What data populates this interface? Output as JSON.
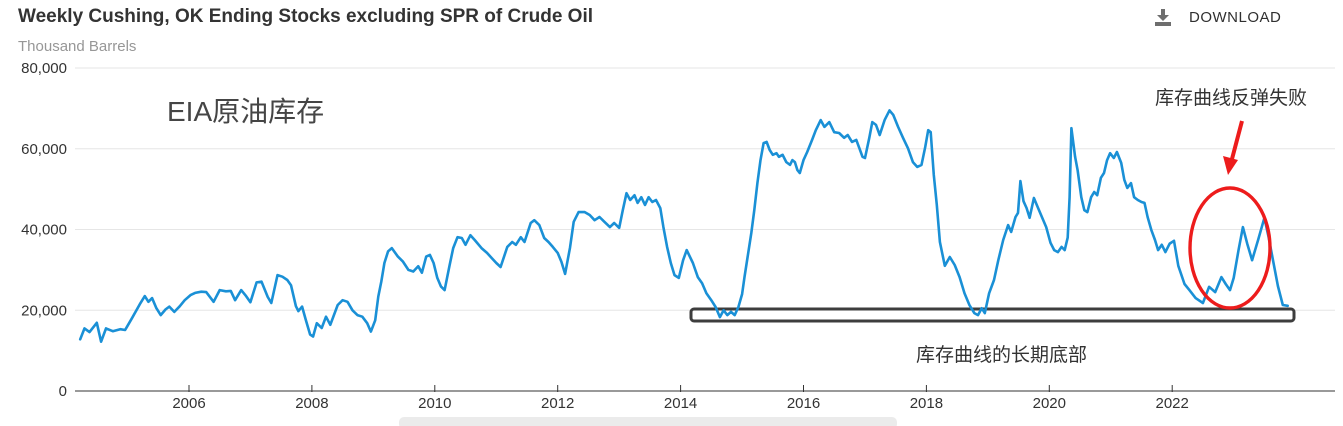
{
  "header": {
    "title": "Weekly Cushing, OK Ending Stocks excluding SPR of Crude Oil",
    "subtitle": "Thousand Barrels",
    "download_label": "DOWNLOAD"
  },
  "annotations": {
    "big_label": "EIA原油库存",
    "rebound_fail": "库存曲线反弹失败",
    "long_term_bottom": "库存曲线的长期底部"
  },
  "colors": {
    "line": "#1a90d6",
    "annotation_red": "#ed1c1c",
    "box_stroke": "#3d3d3d",
    "grid": "#e6e6e6",
    "axis": "#333333",
    "tick_label": "#333333",
    "subtitle_gray": "#979797",
    "icon_gray": "#6e6e6e"
  },
  "chart_data": {
    "type": "line",
    "title": "Weekly Cushing, OK Ending Stocks excluding SPR of Crude Oil",
    "xlabel": "",
    "ylabel": "Thousand Barrels",
    "ylim": [
      0,
      80000
    ],
    "yticks": [
      0,
      20000,
      40000,
      60000,
      80000
    ],
    "ytick_labels": [
      "0",
      "20,000",
      "40,000",
      "60,000",
      "80,000"
    ],
    "xticks": [
      2006,
      2008,
      2010,
      2012,
      2014,
      2016,
      2018,
      2020,
      2022
    ],
    "xtick_labels": [
      "2006",
      "2008",
      "2010",
      "2012",
      "2014",
      "2016",
      "2018",
      "2020",
      "2022"
    ],
    "x_range": [
      2004.1,
      2023.95
    ],
    "grid": true,
    "legend": "none",
    "series": [
      {
        "name": "Weekly Cushing, OK Ending Stocks excluding SPR of Crude Oil",
        "units": "Thousand Barrels",
        "points": [
          [
            2004.23,
            12800
          ],
          [
            2004.3,
            15500
          ],
          [
            2004.38,
            14600
          ],
          [
            2004.5,
            16900
          ],
          [
            2004.57,
            12200
          ],
          [
            2004.65,
            15500
          ],
          [
            2004.76,
            14800
          ],
          [
            2004.88,
            15300
          ],
          [
            2004.96,
            15100
          ],
          [
            2005.07,
            18000
          ],
          [
            2005.2,
            21500
          ],
          [
            2005.28,
            23500
          ],
          [
            2005.34,
            22100
          ],
          [
            2005.4,
            23000
          ],
          [
            2005.47,
            20500
          ],
          [
            2005.54,
            18800
          ],
          [
            2005.62,
            20200
          ],
          [
            2005.68,
            20900
          ],
          [
            2005.76,
            19600
          ],
          [
            2005.85,
            21000
          ],
          [
            2005.93,
            22500
          ],
          [
            2006.03,
            23800
          ],
          [
            2006.1,
            24300
          ],
          [
            2006.2,
            24600
          ],
          [
            2006.28,
            24500
          ],
          [
            2006.4,
            22100
          ],
          [
            2006.5,
            25000
          ],
          [
            2006.6,
            24700
          ],
          [
            2006.68,
            24800
          ],
          [
            2006.75,
            22500
          ],
          [
            2006.85,
            25000
          ],
          [
            2006.93,
            23500
          ],
          [
            2007.0,
            22000
          ],
          [
            2007.1,
            26900
          ],
          [
            2007.18,
            27100
          ],
          [
            2007.28,
            23300
          ],
          [
            2007.34,
            21800
          ],
          [
            2007.44,
            28700
          ],
          [
            2007.52,
            28300
          ],
          [
            2007.6,
            27500
          ],
          [
            2007.66,
            26200
          ],
          [
            2007.74,
            21000
          ],
          [
            2007.78,
            19800
          ],
          [
            2007.84,
            20900
          ],
          [
            2007.9,
            17600
          ],
          [
            2007.97,
            14000
          ],
          [
            2008.02,
            13500
          ],
          [
            2008.08,
            16800
          ],
          [
            2008.16,
            15600
          ],
          [
            2008.23,
            18400
          ],
          [
            2008.3,
            16400
          ],
          [
            2008.42,
            21300
          ],
          [
            2008.5,
            22500
          ],
          [
            2008.58,
            22100
          ],
          [
            2008.66,
            20000
          ],
          [
            2008.74,
            18800
          ],
          [
            2008.82,
            18400
          ],
          [
            2008.9,
            16800
          ],
          [
            2008.96,
            14700
          ],
          [
            2009.03,
            17500
          ],
          [
            2009.08,
            23400
          ],
          [
            2009.13,
            27100
          ],
          [
            2009.18,
            31700
          ],
          [
            2009.24,
            34600
          ],
          [
            2009.3,
            35400
          ],
          [
            2009.4,
            33300
          ],
          [
            2009.48,
            32100
          ],
          [
            2009.57,
            30000
          ],
          [
            2009.65,
            29600
          ],
          [
            2009.73,
            30900
          ],
          [
            2009.79,
            29300
          ],
          [
            2009.86,
            33300
          ],
          [
            2009.92,
            33700
          ],
          [
            2009.98,
            31700
          ],
          [
            2010.04,
            28000
          ],
          [
            2010.1,
            25900
          ],
          [
            2010.16,
            25000
          ],
          [
            2010.24,
            31000
          ],
          [
            2010.3,
            35400
          ],
          [
            2010.37,
            38100
          ],
          [
            2010.44,
            37900
          ],
          [
            2010.5,
            36200
          ],
          [
            2010.58,
            38600
          ],
          [
            2010.65,
            37400
          ],
          [
            2010.76,
            35400
          ],
          [
            2010.85,
            34200
          ],
          [
            2010.93,
            32900
          ],
          [
            2011.0,
            31700
          ],
          [
            2011.07,
            30700
          ],
          [
            2011.18,
            35700
          ],
          [
            2011.26,
            36900
          ],
          [
            2011.32,
            36200
          ],
          [
            2011.4,
            38100
          ],
          [
            2011.46,
            36900
          ],
          [
            2011.56,
            41600
          ],
          [
            2011.62,
            42300
          ],
          [
            2011.7,
            41100
          ],
          [
            2011.78,
            37900
          ],
          [
            2011.85,
            36900
          ],
          [
            2011.92,
            35700
          ],
          [
            2012.0,
            34200
          ],
          [
            2012.06,
            32000
          ],
          [
            2012.12,
            29000
          ],
          [
            2012.2,
            35500
          ],
          [
            2012.26,
            41900
          ],
          [
            2012.34,
            44300
          ],
          [
            2012.44,
            44300
          ],
          [
            2012.52,
            43600
          ],
          [
            2012.6,
            42300
          ],
          [
            2012.68,
            43100
          ],
          [
            2012.76,
            41900
          ],
          [
            2012.85,
            40600
          ],
          [
            2012.92,
            41600
          ],
          [
            2013.0,
            40400
          ],
          [
            2013.06,
            44800
          ],
          [
            2013.12,
            49000
          ],
          [
            2013.18,
            47300
          ],
          [
            2013.25,
            48500
          ],
          [
            2013.3,
            46600
          ],
          [
            2013.36,
            48000
          ],
          [
            2013.42,
            46100
          ],
          [
            2013.48,
            48000
          ],
          [
            2013.54,
            46800
          ],
          [
            2013.6,
            47300
          ],
          [
            2013.67,
            45300
          ],
          [
            2013.72,
            40600
          ],
          [
            2013.78,
            35700
          ],
          [
            2013.84,
            31700
          ],
          [
            2013.9,
            28700
          ],
          [
            2013.97,
            28000
          ],
          [
            2014.04,
            32400
          ],
          [
            2014.1,
            34900
          ],
          [
            2014.2,
            31700
          ],
          [
            2014.28,
            28200
          ],
          [
            2014.35,
            26700
          ],
          [
            2014.42,
            24200
          ],
          [
            2014.5,
            22500
          ],
          [
            2014.57,
            20800
          ],
          [
            2014.64,
            18300
          ],
          [
            2014.7,
            20000
          ],
          [
            2014.76,
            18800
          ],
          [
            2014.82,
            19600
          ],
          [
            2014.88,
            18800
          ],
          [
            2014.94,
            20800
          ],
          [
            2015.0,
            24000
          ],
          [
            2015.04,
            28200
          ],
          [
            2015.09,
            33200
          ],
          [
            2015.15,
            39100
          ],
          [
            2015.2,
            44800
          ],
          [
            2015.25,
            51500
          ],
          [
            2015.3,
            57200
          ],
          [
            2015.35,
            61400
          ],
          [
            2015.4,
            61700
          ],
          [
            2015.45,
            59700
          ],
          [
            2015.5,
            58500
          ],
          [
            2015.56,
            58900
          ],
          [
            2015.6,
            58000
          ],
          [
            2015.66,
            58500
          ],
          [
            2015.72,
            56700
          ],
          [
            2015.78,
            56000
          ],
          [
            2015.82,
            57200
          ],
          [
            2015.86,
            56700
          ],
          [
            2015.9,
            54700
          ],
          [
            2015.94,
            54000
          ],
          [
            2016.0,
            57200
          ],
          [
            2016.06,
            59200
          ],
          [
            2016.14,
            62200
          ],
          [
            2016.2,
            64600
          ],
          [
            2016.28,
            67100
          ],
          [
            2016.34,
            65400
          ],
          [
            2016.42,
            66600
          ],
          [
            2016.5,
            64100
          ],
          [
            2016.58,
            63900
          ],
          [
            2016.66,
            62700
          ],
          [
            2016.72,
            63400
          ],
          [
            2016.79,
            61700
          ],
          [
            2016.86,
            62200
          ],
          [
            2016.91,
            60100
          ],
          [
            2016.96,
            58000
          ],
          [
            2017.0,
            57700
          ],
          [
            2017.07,
            62700
          ],
          [
            2017.12,
            66600
          ],
          [
            2017.18,
            65900
          ],
          [
            2017.24,
            63400
          ],
          [
            2017.32,
            67100
          ],
          [
            2017.4,
            69500
          ],
          [
            2017.46,
            68400
          ],
          [
            2017.54,
            65400
          ],
          [
            2017.62,
            62700
          ],
          [
            2017.7,
            60100
          ],
          [
            2017.78,
            56700
          ],
          [
            2017.85,
            55500
          ],
          [
            2017.92,
            56000
          ],
          [
            2017.98,
            60400
          ],
          [
            2018.03,
            64600
          ],
          [
            2018.07,
            64100
          ],
          [
            2018.12,
            53500
          ],
          [
            2018.17,
            46100
          ],
          [
            2018.22,
            36900
          ],
          [
            2018.3,
            31000
          ],
          [
            2018.38,
            33200
          ],
          [
            2018.46,
            31200
          ],
          [
            2018.54,
            28200
          ],
          [
            2018.62,
            24200
          ],
          [
            2018.7,
            21300
          ],
          [
            2018.78,
            19300
          ],
          [
            2018.84,
            18800
          ],
          [
            2018.9,
            20500
          ],
          [
            2018.95,
            19300
          ],
          [
            2019.02,
            24200
          ],
          [
            2019.1,
            27500
          ],
          [
            2019.17,
            32400
          ],
          [
            2019.25,
            37400
          ],
          [
            2019.33,
            41100
          ],
          [
            2019.38,
            39400
          ],
          [
            2019.45,
            43100
          ],
          [
            2019.49,
            44100
          ],
          [
            2019.53,
            52000
          ],
          [
            2019.58,
            47000
          ],
          [
            2019.63,
            45300
          ],
          [
            2019.68,
            42900
          ],
          [
            2019.75,
            47800
          ],
          [
            2019.81,
            45600
          ],
          [
            2019.88,
            43100
          ],
          [
            2019.95,
            40600
          ],
          [
            2020.02,
            36700
          ],
          [
            2020.08,
            34900
          ],
          [
            2020.14,
            34400
          ],
          [
            2020.2,
            35700
          ],
          [
            2020.25,
            34900
          ],
          [
            2020.3,
            38000
          ],
          [
            2020.33,
            48000
          ],
          [
            2020.36,
            65100
          ],
          [
            2020.42,
            58000
          ],
          [
            2020.46,
            54700
          ],
          [
            2020.52,
            48000
          ],
          [
            2020.57,
            44800
          ],
          [
            2020.62,
            44300
          ],
          [
            2020.68,
            48000
          ],
          [
            2020.73,
            49300
          ],
          [
            2020.78,
            48500
          ],
          [
            2020.84,
            52800
          ],
          [
            2020.89,
            54000
          ],
          [
            2020.94,
            57200
          ],
          [
            2020.99,
            58900
          ],
          [
            2021.05,
            57700
          ],
          [
            2021.1,
            59200
          ],
          [
            2021.17,
            56500
          ],
          [
            2021.22,
            52300
          ],
          [
            2021.27,
            50300
          ],
          [
            2021.33,
            51500
          ],
          [
            2021.38,
            48000
          ],
          [
            2021.44,
            47300
          ],
          [
            2021.5,
            46800
          ],
          [
            2021.55,
            46600
          ],
          [
            2021.6,
            43100
          ],
          [
            2021.66,
            39900
          ],
          [
            2021.72,
            37400
          ],
          [
            2021.77,
            34900
          ],
          [
            2021.83,
            36200
          ],
          [
            2021.89,
            34400
          ],
          [
            2021.96,
            36500
          ],
          [
            2022.03,
            37200
          ],
          [
            2022.1,
            31000
          ],
          [
            2022.2,
            26500
          ],
          [
            2022.28,
            25000
          ],
          [
            2022.38,
            23000
          ],
          [
            2022.5,
            21800
          ],
          [
            2022.6,
            25800
          ],
          [
            2022.7,
            24500
          ],
          [
            2022.8,
            28200
          ],
          [
            2022.87,
            26500
          ],
          [
            2022.94,
            25000
          ],
          [
            2023.0,
            28000
          ],
          [
            2023.08,
            35000
          ],
          [
            2023.15,
            40600
          ],
          [
            2023.22,
            36500
          ],
          [
            2023.3,
            32400
          ],
          [
            2023.4,
            37500
          ],
          [
            2023.5,
            42900
          ],
          [
            2023.57,
            38000
          ],
          [
            2023.64,
            32400
          ],
          [
            2023.72,
            26000
          ],
          [
            2023.8,
            21300
          ],
          [
            2023.88,
            21100
          ]
        ]
      }
    ]
  }
}
